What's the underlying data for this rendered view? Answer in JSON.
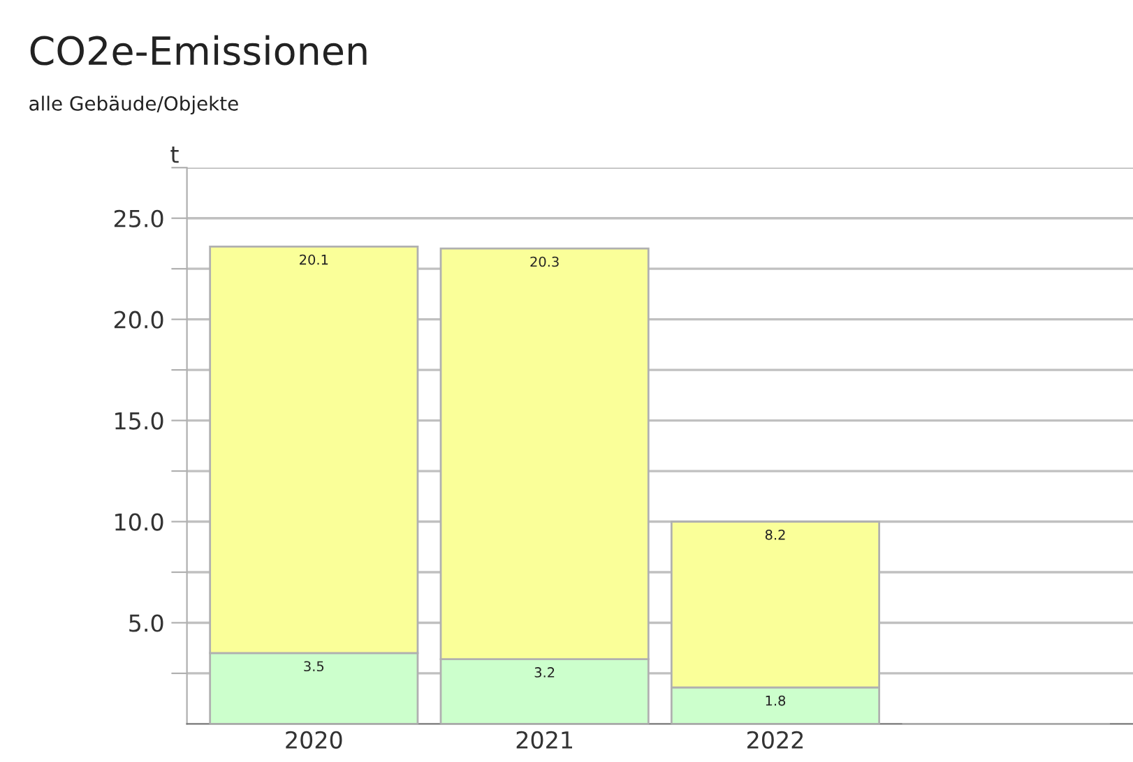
{
  "chart_data": {
    "type": "bar",
    "title": "CO2e-Emissionen",
    "subtitle": "alle Gebäude/Objekte",
    "ylabel": "t",
    "categories": [
      "2020",
      "2021",
      "2022",
      null
    ],
    "stacked": true,
    "data_labels": true,
    "grid": "y",
    "series": [
      {
        "color": "#ccffcc",
        "values": [
          3.5,
          3.2,
          1.8,
          null
        ]
      },
      {
        "color": "#faff99",
        "values": [
          20.1,
          20.3,
          8.2,
          null
        ]
      }
    ],
    "ylim": [
      0,
      27.5
    ],
    "yticks": [
      {
        "value": 2.5,
        "label": null
      },
      {
        "value": 5,
        "label": "5.0"
      },
      {
        "value": 7.5,
        "label": null
      },
      {
        "value": 10,
        "label": "10.0"
      },
      {
        "value": 12.5,
        "label": null
      },
      {
        "value": 15,
        "label": "15.0"
      },
      {
        "value": 17.5,
        "label": null
      },
      {
        "value": 20,
        "label": "20.0"
      },
      {
        "value": 22.5,
        "label": null
      },
      {
        "value": 25,
        "label": "25.0"
      },
      {
        "value": 27.5,
        "label": null
      }
    ]
  }
}
